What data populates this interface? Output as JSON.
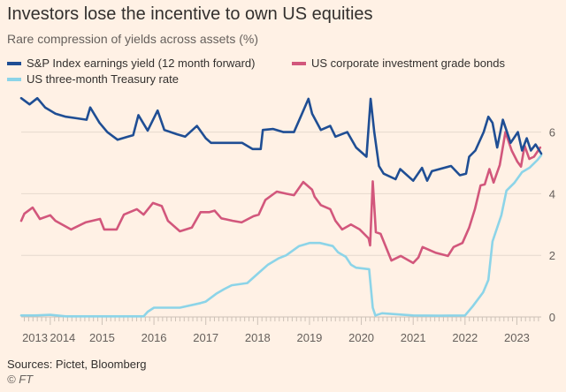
{
  "header": {
    "title": "Investors lose the incentive to own US equities",
    "subtitle": "Rare compression of yields across assets (%)"
  },
  "footer": {
    "sources": "Sources: Pictet, Bloomberg",
    "copyright": "© FT"
  },
  "colors": {
    "background": "#fff1e5",
    "sp_earnings_yield": "#1f4e94",
    "corporate_bonds": "#d2577c",
    "treasury": "#8cd4e8",
    "gridline": "#e6d9ce"
  },
  "chart_data": {
    "type": "line",
    "title": "Investors lose the incentive to own US equities",
    "subtitle": "Rare compression of yields across assets (%)",
    "xlabel": "",
    "ylabel": "",
    "xlim": [
      2013.44,
      2023.47
    ],
    "ylim": [
      0,
      7.4
    ],
    "grid": true,
    "legend_placement": "top-left",
    "x_ticks": [
      "2013",
      "2014",
      "2015",
      "2016",
      "2017",
      "2018",
      "2019",
      "2020",
      "2021",
      "2022",
      "2023"
    ],
    "y_ticks": [
      "0",
      "2",
      "4",
      "6"
    ],
    "series": [
      {
        "name": "S&P Index earnings yield (12 month forward)",
        "x": [
          2013.44,
          2013.6,
          2013.75,
          2013.9,
          2014.1,
          2014.3,
          2014.5,
          2014.7,
          2014.77,
          2014.95,
          2015.1,
          2015.3,
          2015.5,
          2015.6,
          2015.7,
          2015.88,
          2016.07,
          2016.2,
          2016.44,
          2016.6,
          2016.83,
          2017.0,
          2017.1,
          2017.4,
          2017.7,
          2017.9,
          2018.06,
          2018.1,
          2018.3,
          2018.5,
          2018.7,
          2018.83,
          2018.98,
          2019.05,
          2019.22,
          2019.4,
          2019.5,
          2019.73,
          2019.9,
          2020.1,
          2020.18,
          2020.25,
          2020.34,
          2020.43,
          2020.66,
          2020.75,
          2021.0,
          2021.17,
          2021.27,
          2021.36,
          2021.73,
          2021.9,
          2022.02,
          2022.08,
          2022.2,
          2022.36,
          2022.45,
          2022.53,
          2022.62,
          2022.73,
          2022.88,
          2023.02,
          2023.1,
          2023.19,
          2023.27,
          2023.36,
          2023.47
        ],
        "y": [
          7.1,
          6.9,
          7.1,
          6.8,
          6.6,
          6.5,
          6.45,
          6.4,
          6.8,
          6.3,
          6.0,
          5.75,
          5.85,
          5.9,
          6.55,
          6.05,
          6.7,
          6.07,
          5.93,
          5.85,
          6.2,
          5.8,
          5.65,
          5.65,
          5.65,
          5.45,
          5.45,
          6.07,
          6.1,
          6.0,
          6.0,
          6.5,
          7.08,
          6.6,
          6.07,
          6.2,
          5.85,
          6.0,
          5.5,
          5.2,
          7.08,
          6.0,
          4.9,
          4.65,
          4.47,
          4.8,
          4.42,
          4.84,
          4.42,
          4.73,
          4.9,
          4.6,
          4.65,
          5.2,
          5.4,
          6.0,
          6.5,
          6.3,
          5.5,
          6.4,
          5.65,
          6.0,
          5.4,
          5.8,
          5.4,
          5.6,
          5.3
        ]
      },
      {
        "name": "US corporate investment grade bonds",
        "x": [
          2013.44,
          2013.5,
          2013.66,
          2013.8,
          2014.0,
          2014.1,
          2014.4,
          2014.68,
          2014.96,
          2015.04,
          2015.28,
          2015.42,
          2015.67,
          2015.8,
          2015.98,
          2016.15,
          2016.27,
          2016.5,
          2016.73,
          2016.9,
          2017.07,
          2017.17,
          2017.3,
          2017.52,
          2017.69,
          2017.92,
          2018.02,
          2018.15,
          2018.37,
          2018.55,
          2018.7,
          2018.88,
          2019.05,
          2019.1,
          2019.22,
          2019.4,
          2019.5,
          2019.63,
          2019.8,
          2019.97,
          2020.14,
          2020.17,
          2020.22,
          2020.28,
          2020.37,
          2020.58,
          2020.76,
          2021.0,
          2021.1,
          2021.18,
          2021.44,
          2021.67,
          2021.78,
          2021.95,
          2022.08,
          2022.19,
          2022.3,
          2022.38,
          2022.47,
          2022.55,
          2022.67,
          2022.78,
          2022.9,
          2023.01,
          2023.08,
          2023.15,
          2023.24,
          2023.33,
          2023.45
        ],
        "y": [
          3.12,
          3.35,
          3.55,
          3.18,
          3.3,
          3.12,
          2.84,
          3.07,
          3.18,
          2.84,
          2.84,
          3.32,
          3.5,
          3.32,
          3.7,
          3.6,
          3.12,
          2.78,
          2.9,
          3.4,
          3.4,
          3.45,
          3.2,
          3.12,
          3.07,
          3.27,
          3.32,
          3.8,
          4.07,
          4.0,
          3.95,
          4.38,
          4.13,
          3.9,
          3.63,
          3.5,
          3.12,
          2.84,
          3.0,
          2.84,
          2.55,
          2.32,
          4.4,
          2.75,
          2.7,
          1.83,
          1.98,
          1.75,
          1.93,
          2.27,
          2.08,
          1.98,
          2.27,
          2.4,
          2.9,
          3.5,
          4.27,
          4.3,
          4.8,
          4.36,
          4.93,
          6.0,
          5.4,
          5.04,
          4.88,
          5.56,
          5.13,
          5.2,
          5.5
        ]
      },
      {
        "name": "US three-month Treasury rate",
        "x": [
          2013.44,
          2013.7,
          2014.0,
          2014.3,
          2015.0,
          2015.8,
          2015.88,
          2016.0,
          2016.5,
          2016.9,
          2017.0,
          2017.2,
          2017.35,
          2017.5,
          2017.8,
          2018.0,
          2018.2,
          2018.4,
          2018.55,
          2018.8,
          2019.0,
          2019.2,
          2019.45,
          2019.55,
          2019.7,
          2019.8,
          2019.9,
          2020.15,
          2020.22,
          2020.27,
          2020.4,
          2021.0,
          2021.5,
          2022.0,
          2022.15,
          2022.35,
          2022.45,
          2022.53,
          2022.7,
          2022.8,
          2022.95,
          2023.1,
          2023.25,
          2023.4,
          2023.47
        ],
        "y": [
          0.05,
          0.05,
          0.07,
          0.02,
          0.02,
          0.02,
          0.17,
          0.3,
          0.3,
          0.45,
          0.5,
          0.75,
          0.9,
          1.03,
          1.1,
          1.4,
          1.7,
          1.9,
          2.0,
          2.3,
          2.4,
          2.4,
          2.3,
          2.1,
          1.95,
          1.7,
          1.6,
          1.55,
          0.3,
          0.05,
          0.12,
          0.05,
          0.04,
          0.05,
          0.35,
          0.8,
          1.2,
          2.45,
          3.3,
          4.1,
          4.35,
          4.7,
          4.85,
          5.1,
          5.25
        ]
      }
    ]
  }
}
